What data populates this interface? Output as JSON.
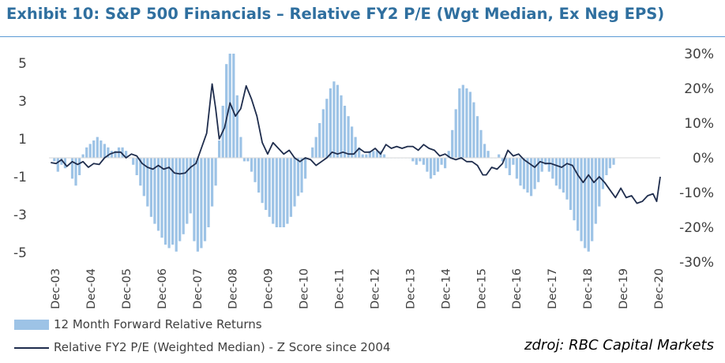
{
  "title": "Exhibit 10: S&P 500 Financials – Relative FY2 P/E (Wgt Median, Ex Neg EPS)",
  "source": "zdroj: RBC Capital Markets",
  "colors": {
    "title": "#2f6f9f",
    "bars": "#9dc3e6",
    "line": "#1f2d4d"
  },
  "chart_data": {
    "type": "line",
    "left_axis": {
      "ticks": [
        "5",
        "3",
        "1",
        "-1",
        "-3",
        "-5"
      ],
      "ylim": [
        -5.5,
        5.5
      ]
    },
    "right_axis": {
      "ticks": [
        "30%",
        "20%",
        "10%",
        "0%",
        "-10%",
        "-20%",
        "-30%"
      ],
      "ylim": [
        -0.3,
        0.3
      ]
    },
    "x_ticks": [
      "Dec-03",
      "Dec-04",
      "Dec-05",
      "Dec-06",
      "Dec-07",
      "Dec-08",
      "Dec-09",
      "Dec-10",
      "Dec-11",
      "Dec-12",
      "Dec-13",
      "Dec-14",
      "Dec-15",
      "Dec-16",
      "Dec-17",
      "Dec-18",
      "Dec-19",
      "Dec-20"
    ],
    "x_range": [
      2003.95,
      2021.0
    ],
    "legend": [
      "12 Month Forward Relative Returns",
      "Relative FY2 P/E (Weighted Median) - Z Score since 2004"
    ],
    "series": [
      {
        "name": "12 Month Forward Relative Returns",
        "type": "bar",
        "axis": "right",
        "points": [
          [
            2004.0,
            0.0
          ],
          [
            2004.1,
            -0.01
          ],
          [
            2004.2,
            -0.04
          ],
          [
            2004.3,
            -0.02
          ],
          [
            2004.4,
            -0.03
          ],
          [
            2004.5,
            0.0
          ],
          [
            2004.6,
            -0.06
          ],
          [
            2004.7,
            -0.08
          ],
          [
            2004.8,
            -0.05
          ],
          [
            2004.9,
            0.01
          ],
          [
            2005.0,
            0.03
          ],
          [
            2005.1,
            0.04
          ],
          [
            2005.2,
            0.05
          ],
          [
            2005.3,
            0.06
          ],
          [
            2005.4,
            0.05
          ],
          [
            2005.5,
            0.04
          ],
          [
            2005.6,
            0.03
          ],
          [
            2005.7,
            0.02
          ],
          [
            2005.8,
            0.02
          ],
          [
            2005.9,
            0.03
          ],
          [
            2006.0,
            0.03
          ],
          [
            2006.1,
            0.02
          ],
          [
            2006.2,
            0.0
          ],
          [
            2006.3,
            -0.02
          ],
          [
            2006.4,
            -0.05
          ],
          [
            2006.5,
            -0.08
          ],
          [
            2006.6,
            -0.11
          ],
          [
            2006.7,
            -0.14
          ],
          [
            2006.8,
            -0.17
          ],
          [
            2006.9,
            -0.19
          ],
          [
            2007.0,
            -0.21
          ],
          [
            2007.1,
            -0.23
          ],
          [
            2007.2,
            -0.25
          ],
          [
            2007.3,
            -0.26
          ],
          [
            2007.4,
            -0.25
          ],
          [
            2007.5,
            -0.27
          ],
          [
            2007.6,
            -0.24
          ],
          [
            2007.7,
            -0.22
          ],
          [
            2007.8,
            -0.19
          ],
          [
            2007.9,
            -0.16
          ],
          [
            2008.0,
            -0.24
          ],
          [
            2008.1,
            -0.27
          ],
          [
            2008.2,
            -0.26
          ],
          [
            2008.3,
            -0.24
          ],
          [
            2008.4,
            -0.2
          ],
          [
            2008.5,
            -0.14
          ],
          [
            2008.6,
            -0.08
          ],
          [
            2008.7,
            0.05
          ],
          [
            2008.8,
            0.15
          ],
          [
            2008.9,
            0.27
          ],
          [
            2009.0,
            0.3
          ],
          [
            2009.1,
            0.3
          ],
          [
            2009.2,
            0.18
          ],
          [
            2009.3,
            0.06
          ],
          [
            2009.4,
            -0.01
          ],
          [
            2009.5,
            -0.01
          ],
          [
            2009.6,
            -0.04
          ],
          [
            2009.7,
            -0.07
          ],
          [
            2009.8,
            -0.1
          ],
          [
            2009.9,
            -0.13
          ],
          [
            2010.0,
            -0.15
          ],
          [
            2010.1,
            -0.17
          ],
          [
            2010.2,
            -0.19
          ],
          [
            2010.3,
            -0.2
          ],
          [
            2010.4,
            -0.2
          ],
          [
            2010.5,
            -0.2
          ],
          [
            2010.6,
            -0.19
          ],
          [
            2010.7,
            -0.17
          ],
          [
            2010.8,
            -0.14
          ],
          [
            2010.9,
            -0.11
          ],
          [
            2011.0,
            -0.1
          ],
          [
            2011.1,
            -0.06
          ],
          [
            2011.2,
            0.0
          ],
          [
            2011.3,
            0.03
          ],
          [
            2011.4,
            0.06
          ],
          [
            2011.5,
            0.1
          ],
          [
            2011.6,
            0.14
          ],
          [
            2011.7,
            0.17
          ],
          [
            2011.8,
            0.2
          ],
          [
            2011.9,
            0.22
          ],
          [
            2012.0,
            0.21
          ],
          [
            2012.1,
            0.18
          ],
          [
            2012.2,
            0.15
          ],
          [
            2012.3,
            0.12
          ],
          [
            2012.4,
            0.09
          ],
          [
            2012.5,
            0.06
          ],
          [
            2012.6,
            0.03
          ],
          [
            2012.7,
            0.01
          ],
          [
            2012.8,
            0.01
          ],
          [
            2012.9,
            0.02
          ],
          [
            2013.0,
            0.02
          ],
          [
            2013.1,
            0.02
          ],
          [
            2013.2,
            0.02
          ],
          [
            2013.3,
            0.01
          ],
          [
            2013.4,
            0.0
          ],
          [
            2013.5,
            0.0
          ],
          [
            2013.6,
            0.0
          ],
          [
            2013.7,
            0.0
          ],
          [
            2013.8,
            0.0
          ],
          [
            2013.9,
            0.0
          ],
          [
            2014.0,
            0.0
          ],
          [
            2014.1,
            -0.01
          ],
          [
            2014.2,
            -0.02
          ],
          [
            2014.3,
            -0.01
          ],
          [
            2014.4,
            -0.02
          ],
          [
            2014.5,
            -0.04
          ],
          [
            2014.6,
            -0.06
          ],
          [
            2014.7,
            -0.05
          ],
          [
            2014.8,
            -0.04
          ],
          [
            2014.9,
            -0.02
          ],
          [
            2015.0,
            -0.03
          ],
          [
            2015.1,
            0.02
          ],
          [
            2015.2,
            0.08
          ],
          [
            2015.3,
            0.14
          ],
          [
            2015.4,
            0.2
          ],
          [
            2015.5,
            0.21
          ],
          [
            2015.6,
            0.2
          ],
          [
            2015.7,
            0.19
          ],
          [
            2015.8,
            0.16
          ],
          [
            2015.9,
            0.12
          ],
          [
            2016.0,
            0.08
          ],
          [
            2016.1,
            0.04
          ],
          [
            2016.2,
            0.02
          ],
          [
            2016.3,
            0.0
          ],
          [
            2016.4,
            0.0
          ],
          [
            2016.5,
            0.01
          ],
          [
            2016.6,
            -0.01
          ],
          [
            2016.7,
            -0.03
          ],
          [
            2016.8,
            -0.05
          ],
          [
            2016.9,
            -0.02
          ],
          [
            2017.0,
            -0.06
          ],
          [
            2017.1,
            -0.08
          ],
          [
            2017.2,
            -0.09
          ],
          [
            2017.3,
            -0.1
          ],
          [
            2017.4,
            -0.11
          ],
          [
            2017.5,
            -0.09
          ],
          [
            2017.6,
            -0.07
          ],
          [
            2017.7,
            -0.04
          ],
          [
            2017.8,
            -0.02
          ],
          [
            2017.9,
            -0.04
          ],
          [
            2018.0,
            -0.06
          ],
          [
            2018.1,
            -0.08
          ],
          [
            2018.2,
            -0.09
          ],
          [
            2018.3,
            -0.1
          ],
          [
            2018.4,
            -0.12
          ],
          [
            2018.5,
            -0.15
          ],
          [
            2018.6,
            -0.18
          ],
          [
            2018.7,
            -0.21
          ],
          [
            2018.8,
            -0.24
          ],
          [
            2018.9,
            -0.26
          ],
          [
            2019.0,
            -0.27
          ],
          [
            2019.1,
            -0.24
          ],
          [
            2019.2,
            -0.19
          ],
          [
            2019.3,
            -0.14
          ],
          [
            2019.4,
            -0.09
          ],
          [
            2019.5,
            -0.05
          ],
          [
            2019.6,
            -0.03
          ],
          [
            2019.7,
            -0.02
          ]
        ]
      },
      {
        "name": "Relative FY2 P/E (Weighted Median) - Z Score since 2004",
        "type": "line",
        "axis": "left",
        "points": [
          [
            2004.0,
            -0.25
          ],
          [
            2004.15,
            -0.3
          ],
          [
            2004.3,
            -0.1
          ],
          [
            2004.45,
            -0.45
          ],
          [
            2004.6,
            -0.2
          ],
          [
            2004.75,
            -0.35
          ],
          [
            2004.9,
            -0.2
          ],
          [
            2005.05,
            -0.5
          ],
          [
            2005.2,
            -0.3
          ],
          [
            2005.35,
            -0.35
          ],
          [
            2005.5,
            0.0
          ],
          [
            2005.65,
            0.2
          ],
          [
            2005.8,
            0.3
          ],
          [
            2005.95,
            0.3
          ],
          [
            2006.1,
            0.0
          ],
          [
            2006.25,
            0.2
          ],
          [
            2006.4,
            0.1
          ],
          [
            2006.55,
            -0.3
          ],
          [
            2006.7,
            -0.5
          ],
          [
            2006.85,
            -0.6
          ],
          [
            2007.0,
            -0.4
          ],
          [
            2007.15,
            -0.6
          ],
          [
            2007.3,
            -0.5
          ],
          [
            2007.45,
            -0.8
          ],
          [
            2007.6,
            -0.85
          ],
          [
            2007.75,
            -0.8
          ],
          [
            2007.9,
            -0.5
          ],
          [
            2008.05,
            -0.3
          ],
          [
            2008.2,
            0.5
          ],
          [
            2008.35,
            1.3
          ],
          [
            2008.5,
            3.9
          ],
          [
            2008.6,
            2.6
          ],
          [
            2008.7,
            1.0
          ],
          [
            2008.85,
            1.6
          ],
          [
            2009.0,
            2.9
          ],
          [
            2009.15,
            2.2
          ],
          [
            2009.3,
            2.6
          ],
          [
            2009.45,
            3.8
          ],
          [
            2009.6,
            3.1
          ],
          [
            2009.75,
            2.2
          ],
          [
            2009.9,
            0.8
          ],
          [
            2010.05,
            0.2
          ],
          [
            2010.2,
            0.8
          ],
          [
            2010.35,
            0.5
          ],
          [
            2010.5,
            0.2
          ],
          [
            2010.65,
            0.4
          ],
          [
            2010.8,
            0.0
          ],
          [
            2010.95,
            -0.2
          ],
          [
            2011.1,
            0.0
          ],
          [
            2011.25,
            -0.1
          ],
          [
            2011.4,
            -0.4
          ],
          [
            2011.55,
            -0.2
          ],
          [
            2011.7,
            0.0
          ],
          [
            2011.85,
            0.3
          ],
          [
            2012.0,
            0.2
          ],
          [
            2012.15,
            0.3
          ],
          [
            2012.3,
            0.2
          ],
          [
            2012.45,
            0.2
          ],
          [
            2012.6,
            0.5
          ],
          [
            2012.75,
            0.3
          ],
          [
            2012.9,
            0.3
          ],
          [
            2013.05,
            0.5
          ],
          [
            2013.2,
            0.2
          ],
          [
            2013.35,
            0.7
          ],
          [
            2013.5,
            0.5
          ],
          [
            2013.65,
            0.6
          ],
          [
            2013.8,
            0.5
          ],
          [
            2013.95,
            0.6
          ],
          [
            2014.1,
            0.6
          ],
          [
            2014.25,
            0.4
          ],
          [
            2014.4,
            0.7
          ],
          [
            2014.55,
            0.5
          ],
          [
            2014.7,
            0.4
          ],
          [
            2014.85,
            0.1
          ],
          [
            2015.0,
            0.2
          ],
          [
            2015.15,
            0.0
          ],
          [
            2015.3,
            -0.1
          ],
          [
            2015.45,
            0.0
          ],
          [
            2015.6,
            -0.2
          ],
          [
            2015.75,
            -0.2
          ],
          [
            2015.9,
            -0.4
          ],
          [
            2016.05,
            -0.9
          ],
          [
            2016.15,
            -0.9
          ],
          [
            2016.3,
            -0.5
          ],
          [
            2016.45,
            -0.6
          ],
          [
            2016.6,
            -0.3
          ],
          [
            2016.75,
            0.4
          ],
          [
            2016.9,
            0.1
          ],
          [
            2017.05,
            0.2
          ],
          [
            2017.2,
            -0.1
          ],
          [
            2017.35,
            -0.3
          ],
          [
            2017.5,
            -0.5
          ],
          [
            2017.65,
            -0.2
          ],
          [
            2017.8,
            -0.3
          ],
          [
            2017.95,
            -0.3
          ],
          [
            2018.1,
            -0.4
          ],
          [
            2018.25,
            -0.5
          ],
          [
            2018.4,
            -0.3
          ],
          [
            2018.55,
            -0.4
          ],
          [
            2018.7,
            -0.9
          ],
          [
            2018.85,
            -1.3
          ],
          [
            2019.0,
            -0.9
          ],
          [
            2019.15,
            -1.3
          ],
          [
            2019.3,
            -1.0
          ],
          [
            2019.45,
            -1.3
          ],
          [
            2019.6,
            -1.7
          ],
          [
            2019.75,
            -2.1
          ],
          [
            2019.9,
            -1.6
          ],
          [
            2020.05,
            -2.1
          ],
          [
            2020.2,
            -2.0
          ],
          [
            2020.35,
            -2.4
          ],
          [
            2020.5,
            -2.3
          ],
          [
            2020.65,
            -2.0
          ],
          [
            2020.8,
            -1.9
          ],
          [
            2020.9,
            -2.3
          ],
          [
            2021.0,
            -1.0
          ]
        ]
      }
    ]
  }
}
